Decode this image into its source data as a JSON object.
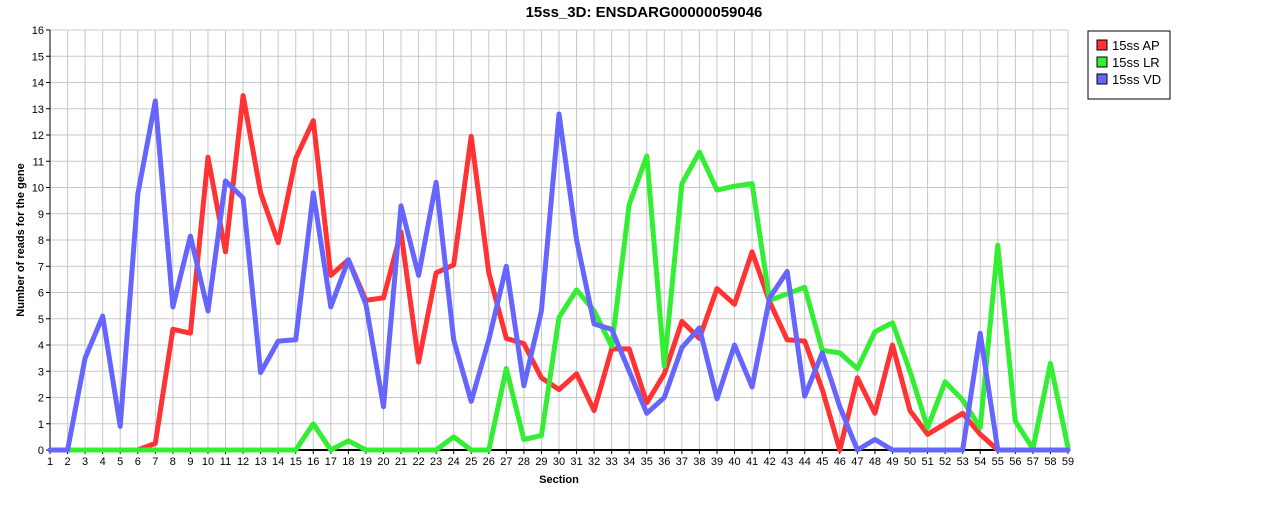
{
  "chart_data": {
    "type": "line",
    "title": "15ss_3D: ENSDARG00000059046",
    "xlabel": "Section",
    "ylabel": "Number of reads for the gene",
    "xlim": [
      1,
      59
    ],
    "ylim": [
      0,
      16
    ],
    "grid": true,
    "legend_position": "top-right",
    "x": [
      1,
      2,
      3,
      4,
      5,
      6,
      7,
      8,
      9,
      10,
      11,
      12,
      13,
      14,
      15,
      16,
      17,
      18,
      19,
      20,
      21,
      22,
      23,
      24,
      25,
      26,
      27,
      28,
      29,
      30,
      31,
      32,
      33,
      34,
      35,
      36,
      37,
      38,
      39,
      40,
      41,
      42,
      43,
      44,
      45,
      46,
      47,
      48,
      49,
      50,
      51,
      52,
      53,
      54,
      55,
      56,
      57,
      58,
      59
    ],
    "yticks": [
      0,
      1,
      2,
      3,
      4,
      5,
      6,
      7,
      8,
      9,
      10,
      11,
      12,
      13,
      14,
      15,
      16
    ],
    "series": [
      {
        "name": "15ss AP",
        "color": "#ff3333",
        "values": [
          0,
          0,
          0,
          0,
          0,
          0,
          0.25,
          4.6,
          4.45,
          11.15,
          7.55,
          13.5,
          9.8,
          7.9,
          11.1,
          12.55,
          6.65,
          7.25,
          5.7,
          5.8,
          8.3,
          3.35,
          6.75,
          7.05,
          11.95,
          6.75,
          4.25,
          4.05,
          2.75,
          2.3,
          2.9,
          1.5,
          3.85,
          3.85,
          1.8,
          2.9,
          4.9,
          4.25,
          6.15,
          5.55,
          7.55,
          5.65,
          4.2,
          4.15,
          2.3,
          0,
          2.75,
          1.4,
          4.0,
          1.5,
          0.6,
          1.0,
          1.4,
          0.6,
          0,
          0,
          0,
          0,
          0
        ]
      },
      {
        "name": "15ss LR",
        "color": "#33ee33",
        "values": [
          0,
          0,
          0,
          0,
          0,
          0,
          0,
          0,
          0,
          0,
          0,
          0,
          0,
          0,
          0,
          1.0,
          0,
          0.35,
          0,
          0,
          0,
          0,
          0,
          0.5,
          0,
          0,
          3.1,
          0.4,
          0.55,
          5.05,
          6.1,
          5.3,
          3.95,
          9.35,
          11.2,
          3.2,
          10.15,
          11.35,
          9.9,
          10.05,
          10.15,
          5.7,
          5.95,
          6.2,
          3.8,
          3.7,
          3.1,
          4.5,
          4.85,
          3.0,
          0.85,
          2.6,
          1.9,
          0.85,
          7.8,
          1.1,
          0.05,
          3.3,
          0.1
        ]
      },
      {
        "name": "15ss VD",
        "color": "#6666ff",
        "values": [
          0,
          0,
          3.5,
          5.1,
          0.9,
          9.75,
          13.3,
          5.45,
          8.15,
          5.3,
          10.25,
          9.6,
          2.95,
          4.15,
          4.2,
          9.8,
          5.45,
          7.25,
          5.55,
          1.65,
          9.3,
          6.65,
          10.2,
          4.2,
          1.85,
          4.2,
          7.0,
          2.45,
          5.3,
          12.8,
          8.0,
          4.8,
          4.6,
          3.0,
          1.4,
          2.0,
          3.9,
          4.65,
          1.95,
          4.0,
          2.4,
          5.8,
          6.8,
          2.05,
          3.7,
          1.65,
          0,
          0.4,
          0,
          0,
          0,
          0,
          0,
          4.45,
          0,
          0,
          0,
          0,
          0
        ]
      }
    ]
  }
}
